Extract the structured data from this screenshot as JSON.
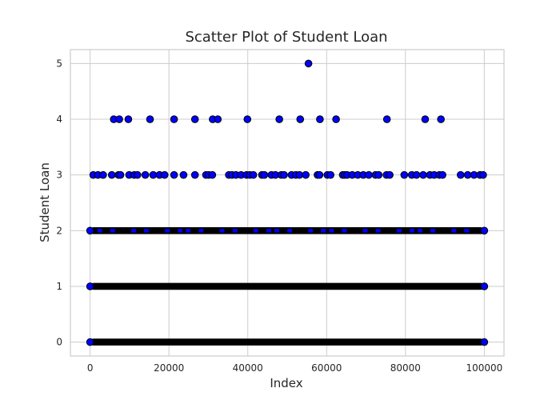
{
  "chart_data": {
    "type": "scatter",
    "title": "Scatter Plot of Student Loan",
    "xlabel": "Index",
    "ylabel": "Student Loan",
    "xlim": [
      -5000,
      105000
    ],
    "ylim": [
      -0.25,
      5.25
    ],
    "xticks": [
      0,
      20000,
      40000,
      60000,
      80000,
      100000
    ],
    "xtick_labels": [
      "0",
      "20000",
      "40000",
      "60000",
      "80000",
      "100000"
    ],
    "yticks": [
      0,
      1,
      2,
      3,
      4,
      5
    ],
    "ytick_labels": [
      "0",
      "1",
      "2",
      "3",
      "4",
      "5"
    ],
    "grid": true,
    "marker_color": "#0000ff",
    "marker_edge_color": "#000000",
    "series": [
      {
        "dense_rows": [
          {
            "y": 0,
            "x_range": [
              0,
              99999
            ],
            "coverage": "continuous"
          },
          {
            "y": 1,
            "x_range": [
              0,
              99999
            ],
            "coverage": "continuous"
          },
          {
            "y": 2,
            "x_range": [
              0,
              99999
            ],
            "coverage": "mostly continuous"
          }
        ],
        "points": [
          {
            "x": 0,
            "y": 0
          },
          {
            "x": 99999,
            "y": 0
          },
          {
            "x": 0,
            "y": 1
          },
          {
            "x": 99999,
            "y": 1
          },
          {
            "x": 0,
            "y": 2
          },
          {
            "x": 99999,
            "y": 2
          },
          {
            "x": 800,
            "y": 3
          },
          {
            "x": 2000,
            "y": 3
          },
          {
            "x": 3300,
            "y": 3
          },
          {
            "x": 5500,
            "y": 3
          },
          {
            "x": 7200,
            "y": 3
          },
          {
            "x": 7700,
            "y": 3
          },
          {
            "x": 9900,
            "y": 3
          },
          {
            "x": 11200,
            "y": 3
          },
          {
            "x": 12000,
            "y": 3
          },
          {
            "x": 14000,
            "y": 3
          },
          {
            "x": 16000,
            "y": 3
          },
          {
            "x": 17600,
            "y": 3
          },
          {
            "x": 18900,
            "y": 3
          },
          {
            "x": 21300,
            "y": 3
          },
          {
            "x": 23700,
            "y": 3
          },
          {
            "x": 26600,
            "y": 3
          },
          {
            "x": 29400,
            "y": 3
          },
          {
            "x": 30100,
            "y": 3
          },
          {
            "x": 31000,
            "y": 3
          },
          {
            "x": 35200,
            "y": 3
          },
          {
            "x": 36000,
            "y": 3
          },
          {
            "x": 37000,
            "y": 3
          },
          {
            "x": 38300,
            "y": 3
          },
          {
            "x": 39700,
            "y": 3
          },
          {
            "x": 40500,
            "y": 3
          },
          {
            "x": 41400,
            "y": 3
          },
          {
            "x": 43600,
            "y": 3
          },
          {
            "x": 44200,
            "y": 3
          },
          {
            "x": 46000,
            "y": 3
          },
          {
            "x": 47000,
            "y": 3
          },
          {
            "x": 48500,
            "y": 3
          },
          {
            "x": 49200,
            "y": 3
          },
          {
            "x": 51100,
            "y": 3
          },
          {
            "x": 52200,
            "y": 3
          },
          {
            "x": 53100,
            "y": 3
          },
          {
            "x": 54700,
            "y": 3
          },
          {
            "x": 57700,
            "y": 3
          },
          {
            "x": 58200,
            "y": 3
          },
          {
            "x": 60200,
            "y": 3
          },
          {
            "x": 61000,
            "y": 3
          },
          {
            "x": 64100,
            "y": 3
          },
          {
            "x": 64600,
            "y": 3
          },
          {
            "x": 65200,
            "y": 3
          },
          {
            "x": 66500,
            "y": 3
          },
          {
            "x": 67900,
            "y": 3
          },
          {
            "x": 69300,
            "y": 3
          },
          {
            "x": 70700,
            "y": 3
          },
          {
            "x": 72400,
            "y": 3
          },
          {
            "x": 73200,
            "y": 3
          },
          {
            "x": 75200,
            "y": 3
          },
          {
            "x": 76000,
            "y": 3
          },
          {
            "x": 79700,
            "y": 3
          },
          {
            "x": 81600,
            "y": 3
          },
          {
            "x": 82800,
            "y": 3
          },
          {
            "x": 84500,
            "y": 3
          },
          {
            "x": 86200,
            "y": 3
          },
          {
            "x": 87300,
            "y": 3
          },
          {
            "x": 88600,
            "y": 3
          },
          {
            "x": 89400,
            "y": 3
          },
          {
            "x": 94000,
            "y": 3
          },
          {
            "x": 95800,
            "y": 3
          },
          {
            "x": 97400,
            "y": 3
          },
          {
            "x": 98900,
            "y": 3
          },
          {
            "x": 99700,
            "y": 3
          },
          {
            "x": 6000,
            "y": 4
          },
          {
            "x": 7400,
            "y": 4
          },
          {
            "x": 9700,
            "y": 4
          },
          {
            "x": 15200,
            "y": 4
          },
          {
            "x": 21300,
            "y": 4
          },
          {
            "x": 26600,
            "y": 4
          },
          {
            "x": 31100,
            "y": 4
          },
          {
            "x": 32400,
            "y": 4
          },
          {
            "x": 39900,
            "y": 4
          },
          {
            "x": 48000,
            "y": 4
          },
          {
            "x": 53300,
            "y": 4
          },
          {
            "x": 58300,
            "y": 4
          },
          {
            "x": 62400,
            "y": 4
          },
          {
            "x": 75300,
            "y": 4
          },
          {
            "x": 85000,
            "y": 4
          },
          {
            "x": 89000,
            "y": 4
          },
          {
            "x": 55400,
            "y": 5
          }
        ]
      }
    ]
  }
}
